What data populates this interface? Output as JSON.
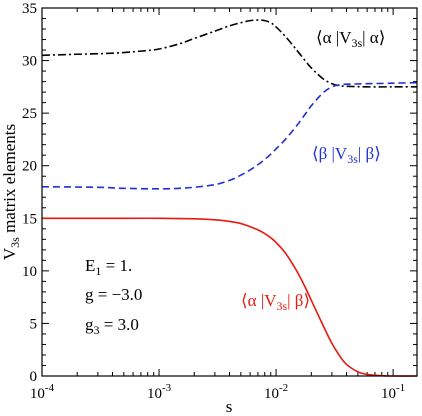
{
  "chart_data": {
    "type": "line",
    "xscale": "log",
    "xlim": [
      0.0001,
      0.16
    ],
    "ylim": [
      0,
      35
    ],
    "xlabel": "s",
    "ylabel": {
      "main": "V",
      "sub": "3s",
      "rest": " matrix elements"
    },
    "grid": false,
    "x_ticks": [
      {
        "value": 0.0001,
        "base": "10",
        "exp": "-4"
      },
      {
        "value": 0.001,
        "base": "10",
        "exp": "-3"
      },
      {
        "value": 0.01,
        "base": "10",
        "exp": "-2"
      },
      {
        "value": 0.1,
        "base": "10",
        "exp": "-1"
      }
    ],
    "y_ticks": [
      0,
      5,
      10,
      15,
      20,
      25,
      30,
      35
    ],
    "series": [
      {
        "label": {
          "pre": "⟨α |V",
          "sub": "3s",
          "post": "| α⟩"
        },
        "color": "#000000",
        "style": "dashdot",
        "points": [
          [
            0.0001,
            30.5
          ],
          [
            0.0002,
            30.6
          ],
          [
            0.0004,
            30.7
          ],
          [
            0.0007,
            30.9
          ],
          [
            0.001,
            31.1
          ],
          [
            0.0015,
            31.6
          ],
          [
            0.002,
            32.1
          ],
          [
            0.003,
            32.8
          ],
          [
            0.004,
            33.3
          ],
          [
            0.005,
            33.6
          ],
          [
            0.006,
            33.8
          ],
          [
            0.007,
            33.85
          ],
          [
            0.008,
            33.8
          ],
          [
            0.009,
            33.6
          ],
          [
            0.01,
            33.2
          ],
          [
            0.012,
            32.3
          ],
          [
            0.015,
            31.0
          ],
          [
            0.018,
            29.9
          ],
          [
            0.02,
            29.3
          ],
          [
            0.025,
            28.3
          ],
          [
            0.03,
            27.8
          ],
          [
            0.035,
            27.6
          ],
          [
            0.04,
            27.55
          ],
          [
            0.06,
            27.5
          ],
          [
            0.1,
            27.5
          ],
          [
            0.16,
            27.5
          ]
        ]
      },
      {
        "label": {
          "pre": "⟨β |V",
          "sub": "3s",
          "post": "| β⟩"
        },
        "color": "#1f2fd6",
        "style": "dashed",
        "points": [
          [
            0.0001,
            18.0
          ],
          [
            0.0003,
            17.95
          ],
          [
            0.0005,
            17.85
          ],
          [
            0.001,
            17.8
          ],
          [
            0.0015,
            17.85
          ],
          [
            0.002,
            17.95
          ],
          [
            0.003,
            18.2
          ],
          [
            0.004,
            18.6
          ],
          [
            0.005,
            19.1
          ],
          [
            0.006,
            19.6
          ],
          [
            0.007,
            20.1
          ],
          [
            0.008,
            20.6
          ],
          [
            0.009,
            21.1
          ],
          [
            0.01,
            21.6
          ],
          [
            0.012,
            22.5
          ],
          [
            0.015,
            23.8
          ],
          [
            0.018,
            25.0
          ],
          [
            0.02,
            25.7
          ],
          [
            0.025,
            26.9
          ],
          [
            0.03,
            27.5
          ],
          [
            0.035,
            27.7
          ],
          [
            0.04,
            27.75
          ],
          [
            0.06,
            27.8
          ],
          [
            0.1,
            27.85
          ],
          [
            0.16,
            27.9
          ]
        ]
      },
      {
        "label": {
          "pre": "⟨α |V",
          "sub": "3s",
          "post": "| β⟩"
        },
        "color": "#e8190f",
        "style": "solid",
        "points": [
          [
            0.0001,
            15.0
          ],
          [
            0.0005,
            15.0
          ],
          [
            0.001,
            15.0
          ],
          [
            0.002,
            14.95
          ],
          [
            0.003,
            14.85
          ],
          [
            0.004,
            14.7
          ],
          [
            0.005,
            14.5
          ],
          [
            0.006,
            14.2
          ],
          [
            0.007,
            13.9
          ],
          [
            0.008,
            13.55
          ],
          [
            0.009,
            13.15
          ],
          [
            0.01,
            12.7
          ],
          [
            0.012,
            11.7
          ],
          [
            0.015,
            10.0
          ],
          [
            0.018,
            8.3
          ],
          [
            0.02,
            7.2
          ],
          [
            0.025,
            4.9
          ],
          [
            0.03,
            3.1
          ],
          [
            0.035,
            1.9
          ],
          [
            0.04,
            1.1
          ],
          [
            0.05,
            0.4
          ],
          [
            0.06,
            0.15
          ],
          [
            0.08,
            0.03
          ],
          [
            0.1,
            0.0
          ],
          [
            0.16,
            0.0
          ]
        ]
      }
    ],
    "annotations": [
      {
        "main": "E",
        "sub": "1",
        "rest": " = 1."
      },
      {
        "main": "g = −3.0",
        "sub": "",
        "rest": ""
      },
      {
        "main": "g",
        "sub": "3",
        "rest": " = 3.0"
      }
    ]
  }
}
